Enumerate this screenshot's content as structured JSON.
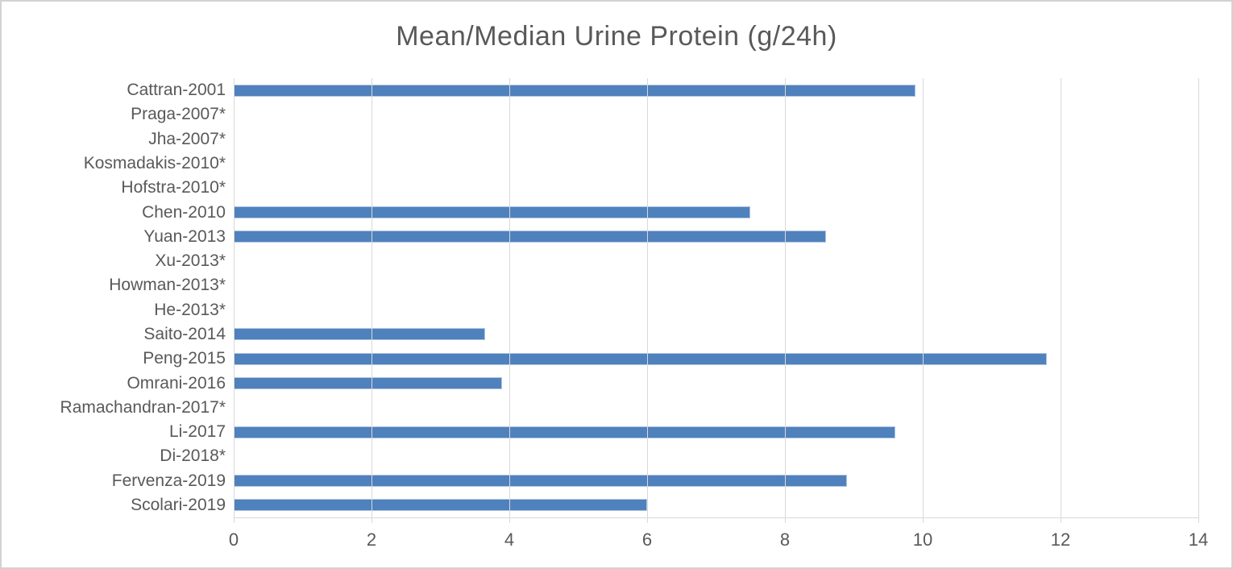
{
  "chart_data": {
    "type": "bar",
    "orientation": "horizontal",
    "title": "Mean/Median Urine Protein (g/24h)",
    "categories": [
      "Cattran-2001",
      "Praga-2007*",
      "Jha-2007*",
      "Kosmadakis-2010*",
      "Hofstra-2010*",
      "Chen-2010",
      "Yuan-2013",
      "Xu-2013*",
      "Howman-2013*",
      "He-2013*",
      "Saito-2014",
      "Peng-2015",
      "Omrani-2016",
      "Ramachandran-2017*",
      "Li-2017",
      "Di-2018*",
      "Fervenza-2019",
      "Scolari-2019"
    ],
    "values": [
      9.9,
      0,
      0,
      0,
      0,
      7.5,
      8.6,
      0,
      0,
      0,
      3.65,
      11.8,
      3.9,
      0,
      9.6,
      0,
      8.9,
      6
    ],
    "xlabel": "",
    "ylabel": "",
    "xlim": [
      0,
      14
    ],
    "xticks": [
      0,
      2,
      4,
      6,
      8,
      10,
      12,
      14
    ],
    "grid": "vertical-gridlines-on",
    "legend": "none",
    "colors": {
      "bar_fill": "#4f81bd",
      "bar_border": "#b0c6e1",
      "gridline": "#d9d9d9",
      "axis_line": "#d9d9d9",
      "text": "#595959",
      "background": "#ffffff"
    }
  }
}
